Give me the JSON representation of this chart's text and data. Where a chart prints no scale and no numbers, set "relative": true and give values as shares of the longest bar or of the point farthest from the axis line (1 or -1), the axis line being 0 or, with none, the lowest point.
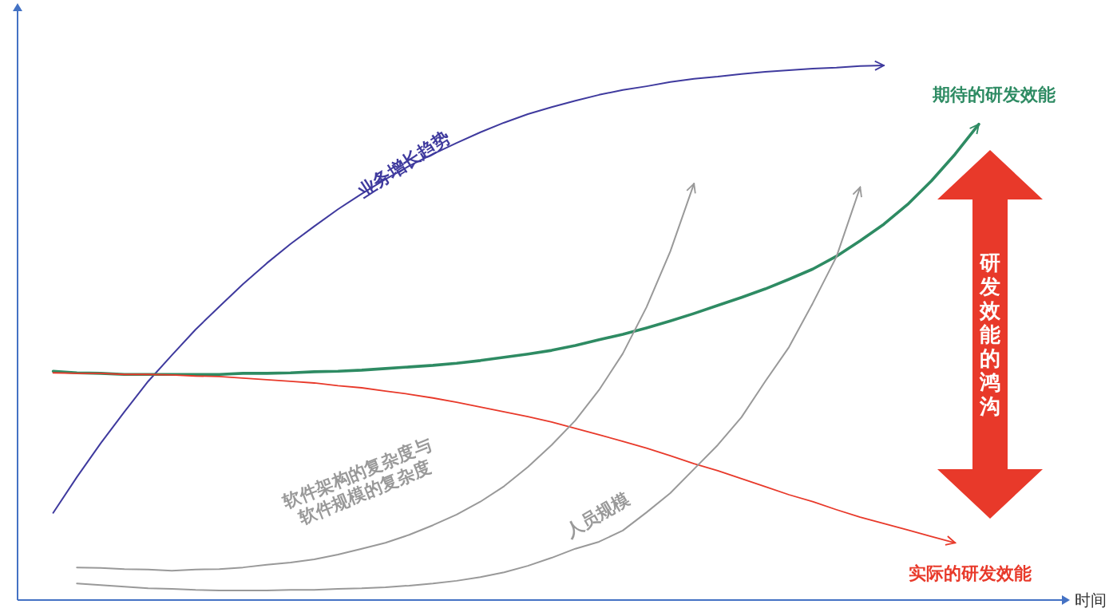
{
  "chart_data": {
    "type": "line",
    "relative": true,
    "xlabel": "时间",
    "line_style": "solid",
    "categories": [
      null,
      null,
      null,
      null,
      null,
      null,
      null,
      null,
      null,
      null,
      null,
      null,
      null,
      null,
      null,
      null,
      null,
      null,
      null,
      null,
      null,
      null,
      null,
      null,
      null,
      null,
      null,
      null,
      null,
      null,
      null,
      null,
      null,
      null,
      null,
      null,
      null,
      null,
      null,
      null,
      null,
      null,
      null,
      null
    ],
    "series": [
      {
        "name": "业务增长趋势",
        "color": "#3f3a9e",
        "values": [
          null,
          0.163,
          0.23,
          0.293,
          0.352,
          0.409,
          0.458,
          0.506,
          0.549,
          0.591,
          0.63,
          0.666,
          0.699,
          0.731,
          0.76,
          0.787,
          0.812,
          0.834,
          0.855,
          0.875,
          0.893,
          0.909,
          0.922,
          0.934,
          0.945,
          0.954,
          0.961,
          0.969,
          0.975,
          0.979,
          0.984,
          0.988,
          0.991,
          0.994,
          0.996,
          0.999,
          1.0,
          null,
          null,
          null,
          null,
          null,
          null,
          null
        ]
      },
      {
        "name": "期待的研发效能",
        "color": "#2e8b63",
        "values": [
          null,
          0.428,
          0.425,
          0.424,
          0.422,
          0.422,
          0.422,
          0.422,
          0.422,
          0.424,
          0.424,
          0.425,
          0.427,
          0.428,
          0.43,
          0.433,
          0.436,
          0.439,
          0.443,
          0.448,
          0.454,
          0.46,
          0.467,
          0.476,
          0.487,
          0.497,
          0.509,
          0.522,
          0.536,
          0.551,
          0.566,
          0.582,
          0.6,
          0.619,
          0.643,
          0.672,
          0.703,
          0.74,
          0.784,
          0.834,
          0.89,
          null,
          null,
          null
        ]
      },
      {
        "name": "实际的研发效能",
        "color": "#e8392a",
        "values": [
          null,
          0.425,
          0.424,
          0.424,
          0.422,
          0.422,
          0.421,
          0.419,
          0.418,
          0.415,
          0.412,
          0.409,
          0.406,
          0.401,
          0.397,
          0.391,
          0.385,
          0.378,
          0.37,
          0.361,
          0.352,
          0.343,
          0.333,
          0.321,
          0.309,
          0.297,
          0.284,
          0.27,
          0.255,
          0.242,
          0.227,
          0.212,
          0.197,
          0.184,
          0.169,
          0.155,
          0.143,
          0.131,
          0.119,
          0.107,
          null,
          null,
          null,
          null
        ]
      },
      {
        "name": "软件架构的复杂度与\n软件规模的复杂度",
        "color": "#999999",
        "values": [
          null,
          null,
          0.061,
          0.06,
          0.058,
          0.057,
          0.055,
          0.057,
          0.058,
          0.061,
          0.066,
          0.07,
          0.076,
          0.085,
          0.096,
          0.107,
          0.122,
          0.14,
          0.16,
          0.184,
          0.213,
          0.249,
          0.29,
          0.336,
          0.393,
          0.461,
          0.548,
          0.652,
          0.779,
          null,
          null,
          null,
          null,
          null,
          null,
          null,
          null,
          null,
          null,
          null,
          null,
          null,
          null,
          null
        ]
      },
      {
        "name": "人员规模",
        "color": "#999999",
        "values": [
          null,
          null,
          0.031,
          0.028,
          0.025,
          0.022,
          0.021,
          0.019,
          0.018,
          0.018,
          0.018,
          0.019,
          0.019,
          0.021,
          0.022,
          0.024,
          0.027,
          0.031,
          0.036,
          0.043,
          0.052,
          0.064,
          0.079,
          0.096,
          0.109,
          0.13,
          0.164,
          0.2,
          0.245,
          0.29,
          0.342,
          0.409,
          0.473,
          0.555,
          0.642,
          0.772,
          null,
          null,
          null,
          null,
          null,
          null,
          null,
          null
        ]
      }
    ],
    "annotations": [
      "研发效能的鸿沟"
    ]
  }
}
